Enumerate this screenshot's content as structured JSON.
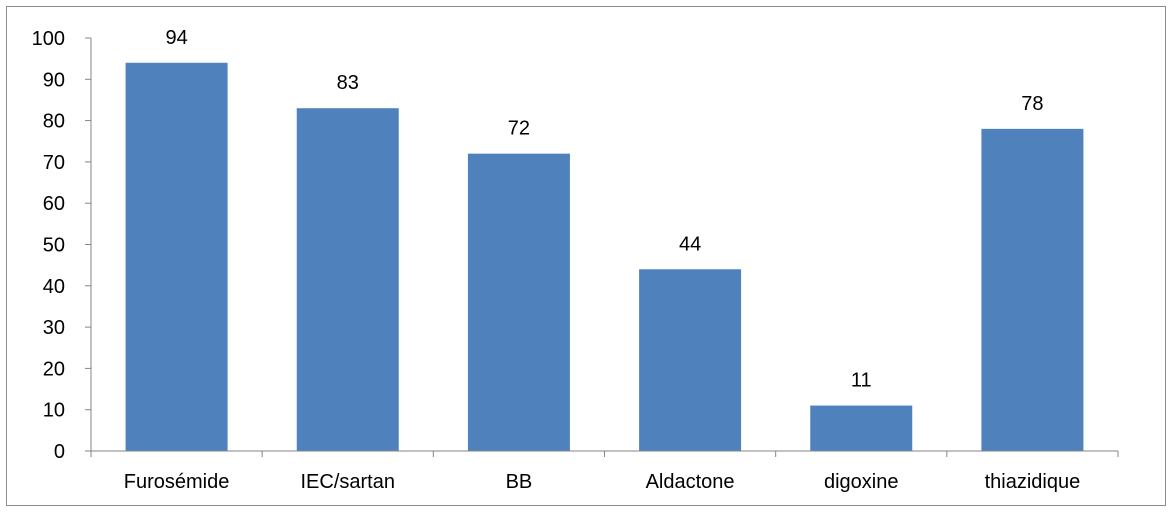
{
  "chart_data": {
    "type": "bar",
    "title": "",
    "xlabel": "",
    "ylabel": "",
    "categories": [
      "Furosémide",
      "IEC/sartan",
      "BB",
      "Aldactone",
      "digoxine",
      "thiazidique"
    ],
    "values": [
      94,
      83,
      72,
      44,
      11,
      78
    ],
    "data_labels": [
      "94",
      "83",
      "72",
      "44",
      "11",
      "78"
    ],
    "ylim": [
      0,
      100
    ],
    "y_ticks": [
      0,
      10,
      20,
      30,
      40,
      50,
      60,
      70,
      80,
      90,
      100
    ],
    "y_tick_labels": [
      "0",
      "10",
      "20",
      "30",
      "40",
      "50",
      "60",
      "70",
      "80",
      "90",
      "100"
    ],
    "grid": false,
    "legend": "none",
    "bar_color": "#4f81bd",
    "axis_color": "#868686"
  }
}
